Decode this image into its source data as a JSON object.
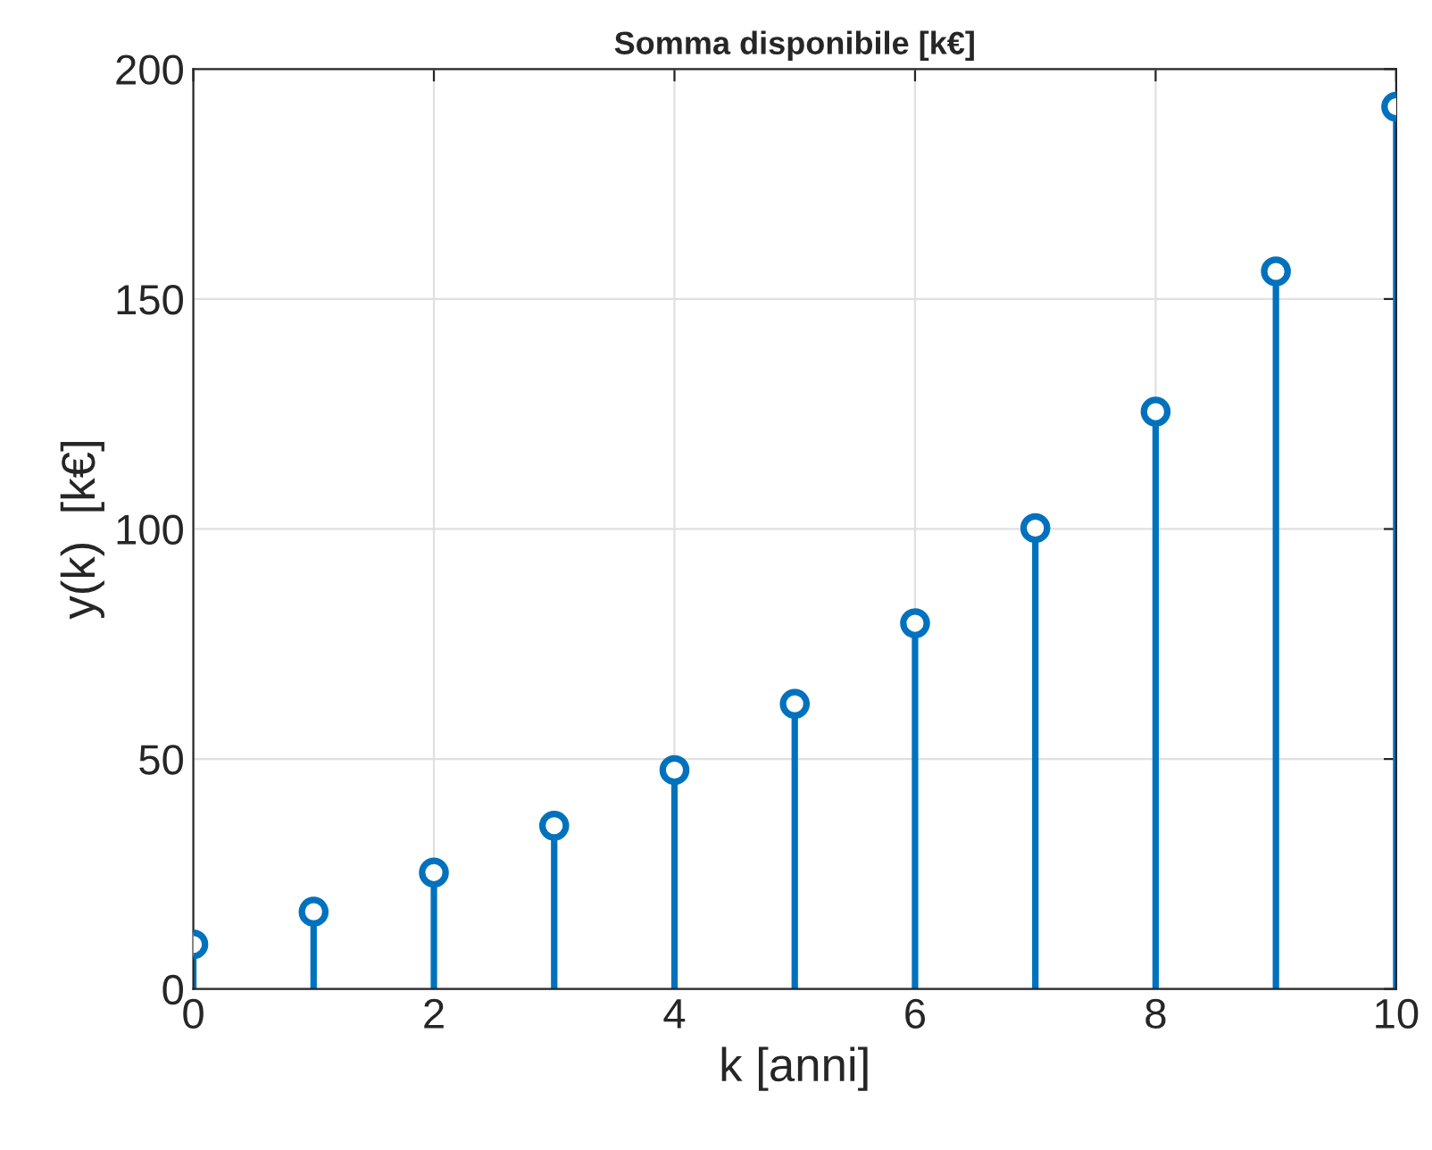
{
  "chart_data": {
    "type": "lollipop",
    "title": "Somma disponibile [k€]",
    "xlabel": "k [anni]",
    "ylabel": "y(k)  [k€]",
    "x": [
      0,
      1,
      2,
      3,
      4,
      5,
      6,
      7,
      8,
      9,
      10
    ],
    "series": [
      {
        "color": "#0072bd",
        "values": [
          9.7,
          16.8,
          25.3,
          35.5,
          47.6,
          62,
          79.5,
          100.2,
          125.5,
          156,
          191.8
        ]
      }
    ],
    "xlim": [
      0,
      10
    ],
    "xticks": [
      0,
      2,
      4,
      6,
      8,
      10
    ],
    "ylim": [
      0,
      200
    ],
    "yticks": [
      0,
      50,
      100,
      150,
      200
    ],
    "grid": true,
    "marker": "circle"
  }
}
